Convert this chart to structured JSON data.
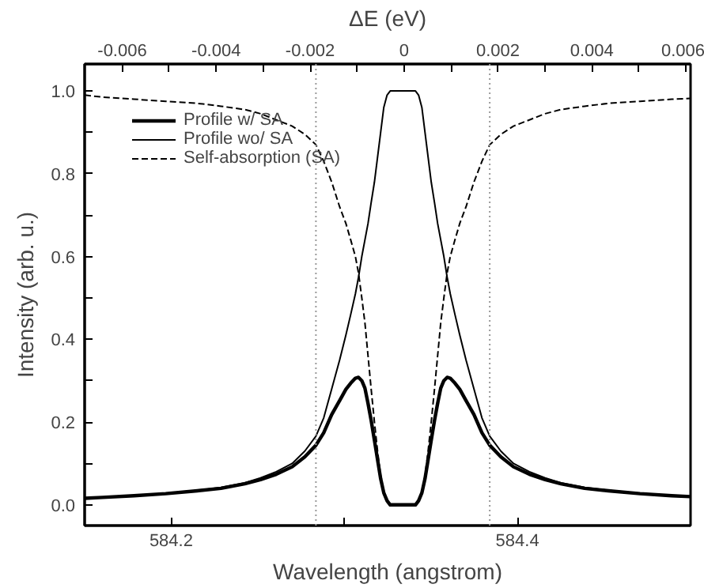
{
  "chart_data": {
    "type": "line",
    "xlabel": "Wavelength (angstrom)",
    "ylabel": "Intensity (arb. u.)",
    "x2label": "ΔE (eV)",
    "x": [
      584.15,
      584.1603,
      584.1785,
      584.1968,
      584.2151,
      584.2288,
      584.2425,
      584.2516,
      584.2607,
      584.2699,
      584.2772,
      584.2836,
      584.2881,
      584.2927,
      584.2973,
      584.3009,
      584.3037,
      584.3064,
      584.3082,
      584.3101,
      584.3119,
      584.3137,
      584.3155,
      584.3174,
      584.3192,
      584.321,
      584.3228,
      584.3247,
      584.3265,
      584.3301,
      584.3338,
      584.3375,
      584.3411,
      584.3429,
      584.3448,
      584.3466,
      584.3484,
      584.3502,
      584.3521,
      584.3539,
      584.3557,
      584.3575,
      584.3594,
      584.3612,
      584.3639,
      584.3667,
      584.3703,
      584.3749,
      584.3795,
      584.384,
      584.3904,
      584.3977,
      584.4069,
      584.416,
      584.4251,
      584.4388,
      584.4525,
      584.4708,
      584.4891,
      584.5
    ],
    "series": [
      {
        "name": "Profile w/ SA",
        "color": "#000000",
        "line_style": "solid",
        "values": [
          0.016,
          0.018,
          0.022,
          0.027,
          0.034,
          0.04,
          0.051,
          0.061,
          0.074,
          0.092,
          0.116,
          0.144,
          0.174,
          0.218,
          0.252,
          0.279,
          0.294,
          0.306,
          0.308,
          0.3,
          0.282,
          0.245,
          0.204,
          0.156,
          0.109,
          0.063,
          0.029,
          0.01,
          0,
          0,
          0,
          0,
          0,
          0.01,
          0.029,
          0.063,
          0.109,
          0.156,
          0.204,
          0.245,
          0.282,
          0.3,
          0.308,
          0.306,
          0.294,
          0.279,
          0.252,
          0.218,
          0.174,
          0.144,
          0.116,
          0.092,
          0.074,
          0.061,
          0.051,
          0.04,
          0.034,
          0.027,
          0.022,
          0.02
        ]
      },
      {
        "name": "Profile wo/ SA",
        "color": "#000000",
        "line_style": "solid",
        "values": [
          0.016,
          0.018,
          0.022,
          0.028,
          0.035,
          0.042,
          0.053,
          0.065,
          0.08,
          0.1,
          0.13,
          0.166,
          0.21,
          0.28,
          0.35,
          0.41,
          0.46,
          0.51,
          0.55,
          0.6,
          0.64,
          0.68,
          0.73,
          0.78,
          0.84,
          0.9,
          0.96,
          0.99,
          1,
          1,
          1,
          1,
          1,
          0.99,
          0.96,
          0.9,
          0.84,
          0.78,
          0.73,
          0.68,
          0.64,
          0.6,
          0.55,
          0.51,
          0.46,
          0.41,
          0.35,
          0.28,
          0.21,
          0.166,
          0.13,
          0.1,
          0.08,
          0.065,
          0.053,
          0.042,
          0.035,
          0.028,
          0.022,
          0.02
        ]
      },
      {
        "name": "Self-absorption (SA)",
        "color": "#000000",
        "line_style": "dashed",
        "values": [
          0.99,
          0.985,
          0.98,
          0.975,
          0.97,
          0.963,
          0.955,
          0.945,
          0.93,
          0.915,
          0.895,
          0.87,
          0.83,
          0.78,
          0.72,
          0.68,
          0.64,
          0.6,
          0.56,
          0.5,
          0.44,
          0.36,
          0.28,
          0.2,
          0.13,
          0.07,
          0.03,
          0.01,
          0,
          0,
          0,
          0,
          0,
          0.01,
          0.03,
          0.07,
          0.13,
          0.2,
          0.28,
          0.36,
          0.44,
          0.5,
          0.56,
          0.6,
          0.64,
          0.68,
          0.72,
          0.78,
          0.83,
          0.87,
          0.895,
          0.915,
          0.93,
          0.945,
          0.955,
          0.963,
          0.97,
          0.975,
          0.98,
          0.982
        ]
      }
    ],
    "xlim": [
      584.15,
      584.5
    ],
    "xticks": [
      584.2,
      {
        "value": 584.3,
        "label": null
      },
      584.4,
      {
        "value": 584.5,
        "label": null
      }
    ],
    "ylim": [
      -0.05,
      1.065
    ],
    "yticks": [
      {
        "value": 0,
        "label": "0.0"
      },
      {
        "value": 0.1,
        "label": null
      },
      {
        "value": 0.2,
        "label": "0.2"
      },
      {
        "value": 0.3,
        "label": null
      },
      {
        "value": 0.4,
        "label": "0.4"
      },
      {
        "value": 0.5,
        "label": null
      },
      {
        "value": 0.6,
        "label": "0.6"
      },
      {
        "value": 0.7,
        "label": null
      },
      {
        "value": 0.8,
        "label": "0.8"
      },
      {
        "value": 0.9,
        "label": null
      },
      {
        "value": 1.0,
        "label": "1.0"
      }
    ],
    "x2lim": [
      -0.0068,
      0.0061
    ],
    "x2ticks": [
      -0.006,
      {
        "value": -0.005,
        "label": null
      },
      -0.004,
      {
        "value": -0.003,
        "label": null
      },
      -0.002,
      {
        "value": -0.001,
        "label": null
      },
      0,
      {
        "value": 0.001,
        "label": null
      },
      0.002,
      {
        "value": 0.003,
        "label": null
      },
      0.004,
      {
        "value": 0.005,
        "label": null
      },
      0.006
    ],
    "ref_lines": [
      {
        "axis": "x",
        "value": 584.2836,
        "color": "#999999",
        "line_style": "dotted"
      },
      {
        "axis": "x",
        "value": 584.384,
        "color": "#999999",
        "line_style": "dotted"
      }
    ],
    "legend": "top left",
    "grid": false
  }
}
